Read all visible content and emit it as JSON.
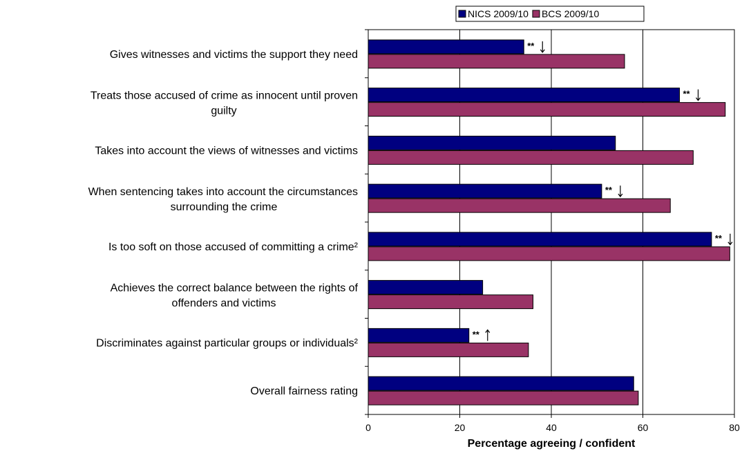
{
  "chart_data": {
    "type": "bar",
    "orientation": "horizontal",
    "categories": [
      [
        "Gives witnesses and victims the support they need"
      ],
      [
        "Treats those accused of crime as innocent until proven",
        "guilty"
      ],
      [
        "Takes into account the views of witnesses and victims"
      ],
      [
        "When sentencing takes into account the circumstances",
        "surrounding the crime"
      ],
      [
        "Is too soft on those accused of committing a crime²"
      ],
      [
        "Achieves the correct balance between the rights of",
        "offenders and victims"
      ],
      [
        "Discriminates against particular groups or individuals²"
      ],
      [
        "Overall fairness rating"
      ]
    ],
    "series": [
      {
        "name": "NICS 2009/10",
        "color": "#000080",
        "values": [
          34,
          68,
          54,
          51,
          75,
          25,
          22,
          58
        ]
      },
      {
        "name": "BCS 2009/10",
        "color": "#993366",
        "values": [
          56,
          78,
          71,
          66,
          79,
          36,
          35,
          59
        ]
      }
    ],
    "annotations": [
      {
        "category_index": 0,
        "text": "**",
        "arrow": "down"
      },
      {
        "category_index": 1,
        "text": "**",
        "arrow": "down"
      },
      {
        "category_index": 3,
        "text": "**",
        "arrow": "down"
      },
      {
        "category_index": 4,
        "text": "**",
        "arrow": "down"
      },
      {
        "category_index": 6,
        "text": "**",
        "arrow": "up"
      }
    ],
    "xlabel": "Percentage agreeing / confident",
    "xlim": [
      0,
      80
    ],
    "xticks": [
      0,
      20,
      40,
      60,
      80
    ],
    "grid": true,
    "legend_position": "top"
  }
}
